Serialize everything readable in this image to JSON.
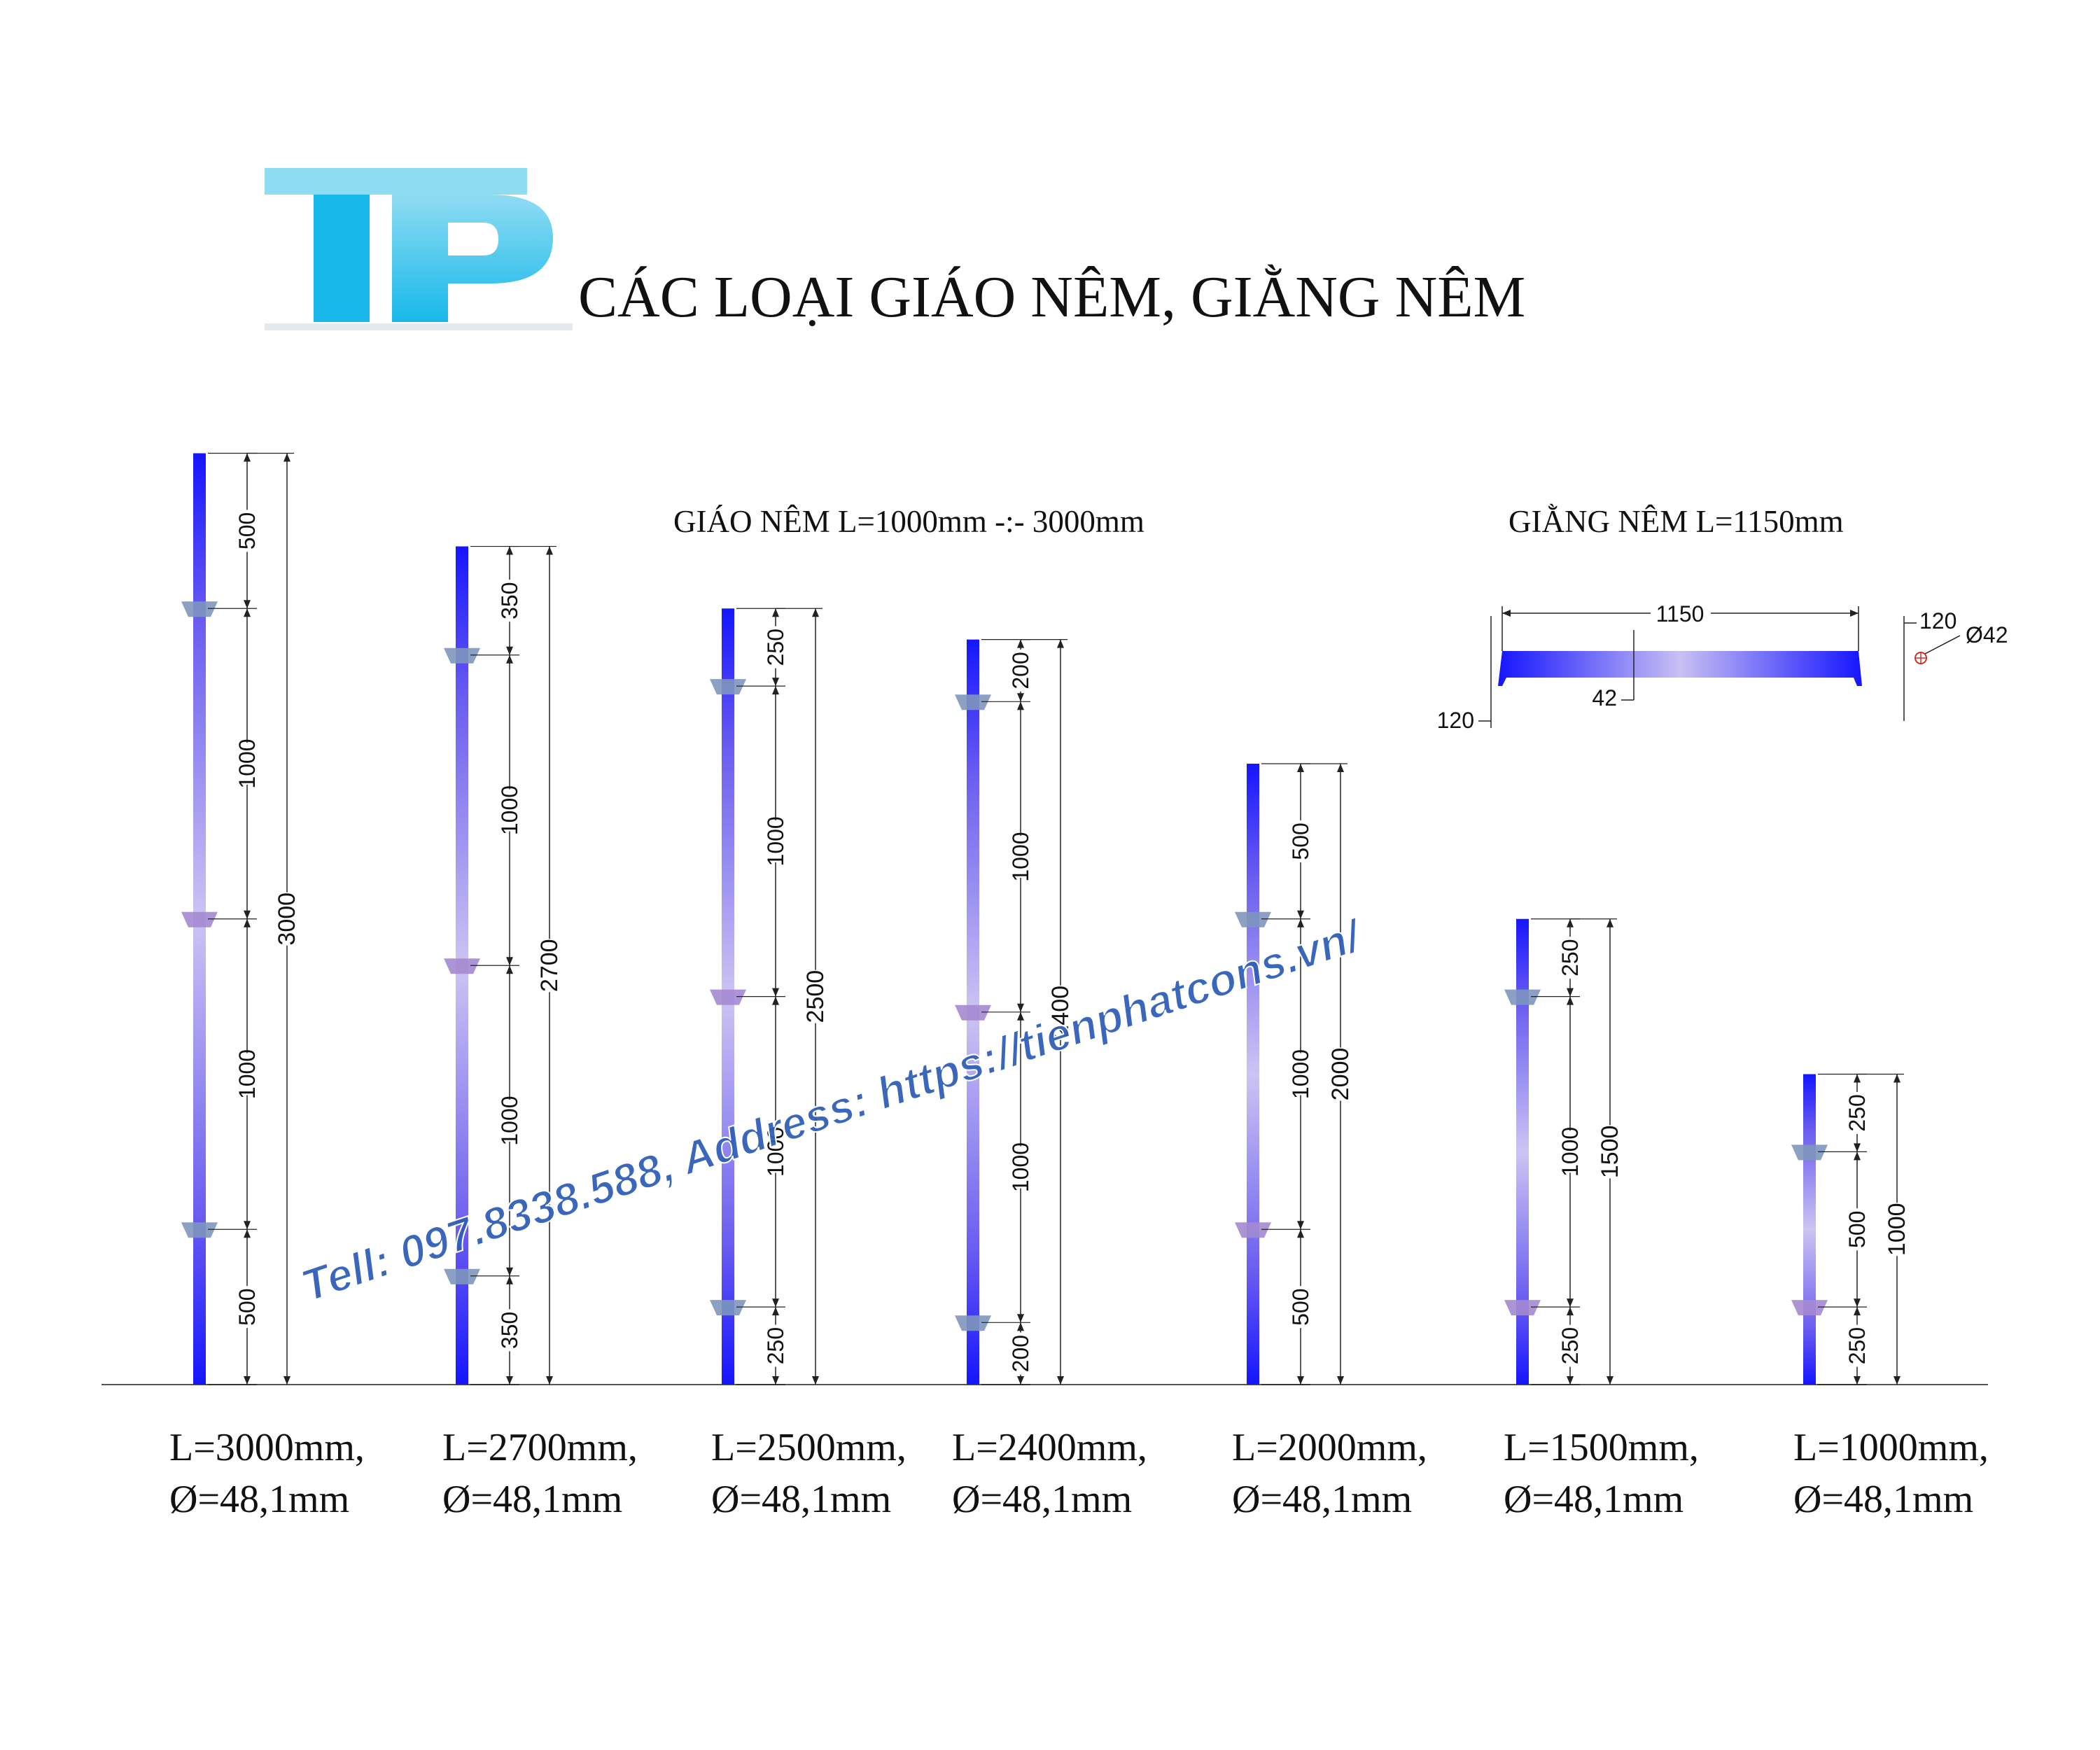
{
  "header": {
    "logo_text": "TP",
    "title": "CÁC LOẠI GIÁO NÊM, GIẰNG NÊM"
  },
  "section_labels": {
    "gia_nem": "GIÁO NÊM L=1000mm -:- 3000mm",
    "giang_nem": "GIẰNG NÊM L=1150mm"
  },
  "posts": [
    {
      "id": "L3000",
      "length": 3000,
      "segments": [
        500,
        1000,
        1000,
        500
      ],
      "caption_line1": "L=3000mm,",
      "caption_line2": "Ø=48,1mm"
    },
    {
      "id": "L2700",
      "length": 2700,
      "segments": [
        350,
        1000,
        1000,
        350
      ],
      "caption_line1": "L=2700mm,",
      "caption_line2": "Ø=48,1mm"
    },
    {
      "id": "L2500",
      "length": 2500,
      "segments": [
        250,
        1000,
        1000,
        250
      ],
      "caption_line1": "L=2500mm,",
      "caption_line2": "Ø=48,1mm"
    },
    {
      "id": "L2400",
      "length": 2400,
      "segments": [
        200,
        1000,
        1000,
        200
      ],
      "caption_line1": "L=2400mm,",
      "caption_line2": "Ø=48,1mm"
    },
    {
      "id": "L2000",
      "length": 2000,
      "segments": [
        500,
        1000,
        500
      ],
      "caption_line1": "L=2000mm,",
      "caption_line2": "Ø=48,1mm"
    },
    {
      "id": "L1500",
      "length": 1500,
      "segments": [
        250,
        1000,
        250
      ],
      "caption_line1": "L=1500mm,",
      "caption_line2": "Ø=48,1mm"
    },
    {
      "id": "L1000",
      "length": 1000,
      "segments": [
        250,
        500,
        250
      ],
      "caption_line1": "L=1000mm,",
      "caption_line2": "Ø=48,1mm"
    }
  ],
  "brace": {
    "length_label": "1150",
    "diameter_label": "42",
    "hook_left_label": "120",
    "hook_right_label": "120",
    "section_label": "Ø42"
  },
  "watermark": "Tell: 097.8338.588, Address: https://tienphatcons.vn/",
  "colors": {
    "logo_light": "#8fdcf2",
    "logo_dark": "#18b8ea",
    "pipe_dark": "#1a1aff",
    "pipe_light": "#c8c0f0",
    "wedge_blue": "#7e96bd",
    "wedge_purple": "#a48ad0",
    "watermark": "#2f5fb8",
    "line": "#222222"
  }
}
